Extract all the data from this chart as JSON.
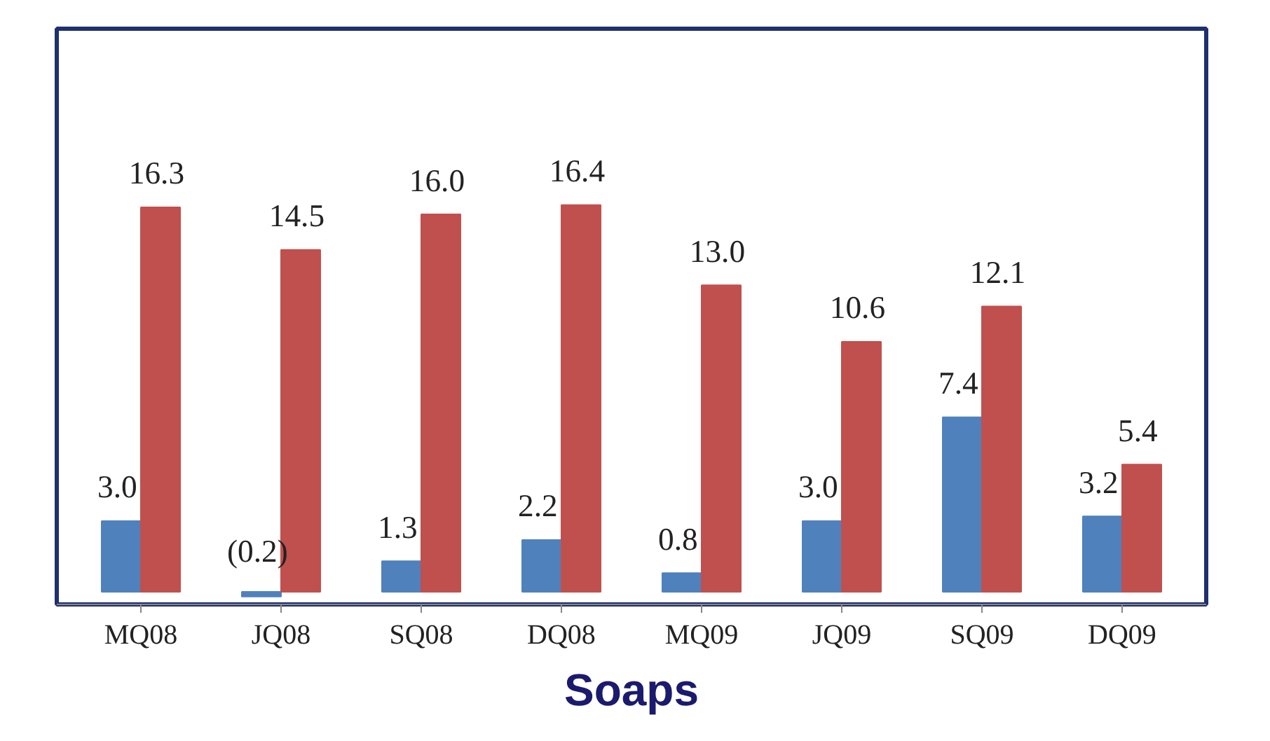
{
  "chart_data": {
    "type": "bar",
    "title": "Soaps",
    "categories": [
      "MQ08",
      "JQ08",
      "SQ08",
      "DQ08",
      "MQ09",
      "JQ09",
      "SQ09",
      "DQ09"
    ],
    "series": [
      {
        "color": "#4f81bd",
        "values": [
          3.0,
          -0.2,
          1.3,
          2.2,
          0.8,
          3.0,
          7.4,
          3.2
        ],
        "value_labels": [
          "3.0",
          "(0.2)",
          "1.3",
          "2.2",
          "0.8",
          "3.0",
          "7.4",
          "3.2"
        ]
      },
      {
        "color": "#c0504d",
        "values": [
          16.3,
          14.5,
          16.0,
          16.4,
          13.0,
          10.6,
          12.1,
          5.4
        ],
        "value_labels": [
          "16.3",
          "14.5",
          "16.0",
          "16.4",
          "13.0",
          "10.6",
          "12.1",
          "5.4"
        ]
      }
    ],
    "grid": false
  }
}
